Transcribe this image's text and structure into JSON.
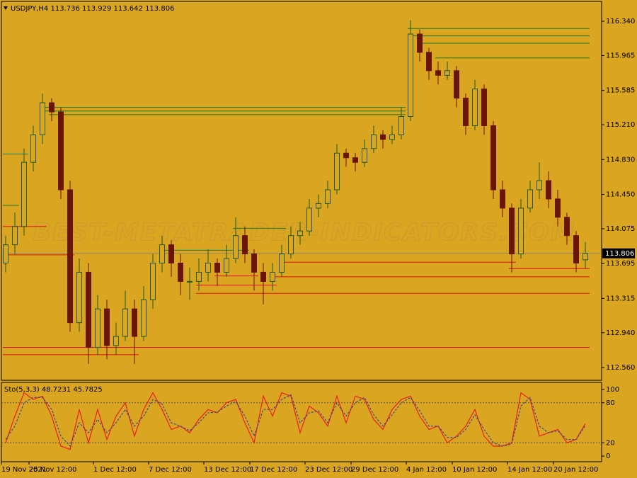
{
  "chart_data": [
    {
      "type": "candlestick",
      "title": "USDJPY,H4  113.736 113.929 113.642 113.806",
      "watermark": "BEST-METATRADER-INDICATORS.COM",
      "categories": [
        "19 Nov 2021",
        null,
        null,
        "25 Nov 12:00",
        null,
        null,
        null,
        null,
        null,
        null,
        "1 Dec 12:00",
        null,
        null,
        null,
        null,
        null,
        "7 Dec 12:00",
        null,
        null,
        null,
        null,
        null,
        "13 Dec 12:00",
        null,
        null,
        null,
        null,
        "17 Dec 12:00",
        null,
        null,
        null,
        null,
        null,
        "23 Dec 12:00",
        null,
        null,
        null,
        null,
        "29 Dec 12:00",
        null,
        null,
        null,
        null,
        null,
        "4 Jan 12:00",
        null,
        null,
        null,
        null,
        "10 Jan 12:00",
        null,
        null,
        null,
        null,
        null,
        "14 Jan 12:00",
        null,
        null,
        null,
        null,
        "20 Jan 12:00",
        null,
        null,
        null
      ],
      "open": [
        113.7,
        113.9,
        114.1,
        114.8,
        115.1,
        115.45,
        115.35,
        114.5,
        113.05,
        113.6,
        112.78,
        113.2,
        112.8,
        112.9,
        113.2,
        112.9,
        113.3,
        113.7,
        113.9,
        113.7,
        113.5,
        113.5,
        113.6,
        113.7,
        113.6,
        113.75,
        114.0,
        113.8,
        113.6,
        113.5,
        113.6,
        113.8,
        114.0,
        114.05,
        114.3,
        114.35,
        114.5,
        114.9,
        114.85,
        114.8,
        114.95,
        115.1,
        115.05,
        115.1,
        115.3,
        116.2,
        116.0,
        115.8,
        115.75,
        115.8,
        115.5,
        115.2,
        115.6,
        115.2,
        114.5,
        114.3,
        113.8,
        114.3,
        114.5,
        114.6,
        114.4,
        114.2,
        114.0,
        113.736
      ],
      "high": [
        114.0,
        114.25,
        114.95,
        115.2,
        115.55,
        115.5,
        115.4,
        114.6,
        113.75,
        113.7,
        113.35,
        113.3,
        113.05,
        113.4,
        113.3,
        113.45,
        113.8,
        114.0,
        113.95,
        113.8,
        113.65,
        113.75,
        113.85,
        113.75,
        113.9,
        114.2,
        114.1,
        113.85,
        113.7,
        113.7,
        113.9,
        114.1,
        114.15,
        114.4,
        114.45,
        114.6,
        115.0,
        114.95,
        114.9,
        115.05,
        115.2,
        115.15,
        115.2,
        115.4,
        116.35,
        116.25,
        116.05,
        115.9,
        115.9,
        115.85,
        115.55,
        115.7,
        115.65,
        115.25,
        114.6,
        114.35,
        114.4,
        114.6,
        114.8,
        114.7,
        114.5,
        114.25,
        114.05,
        113.929
      ],
      "low": [
        113.6,
        113.8,
        114.0,
        114.7,
        115.0,
        115.25,
        114.4,
        112.95,
        112.95,
        112.6,
        112.7,
        112.65,
        112.7,
        112.85,
        112.6,
        112.85,
        113.2,
        113.6,
        113.55,
        113.35,
        113.3,
        113.4,
        113.5,
        113.45,
        113.55,
        113.7,
        113.7,
        113.4,
        113.25,
        113.4,
        113.55,
        113.75,
        113.9,
        114.0,
        114.2,
        114.3,
        114.45,
        114.75,
        114.7,
        114.75,
        114.9,
        114.95,
        115.0,
        115.05,
        115.25,
        115.9,
        115.7,
        115.65,
        115.7,
        115.4,
        115.1,
        115.15,
        115.1,
        114.4,
        114.2,
        113.6,
        113.75,
        114.25,
        114.4,
        114.3,
        114.1,
        113.9,
        113.6,
        113.642
      ],
      "close": [
        113.9,
        114.1,
        114.8,
        115.1,
        115.45,
        115.35,
        114.5,
        113.05,
        113.6,
        112.78,
        113.2,
        112.8,
        112.9,
        113.2,
        112.9,
        113.3,
        113.7,
        113.9,
        113.7,
        113.5,
        113.5,
        113.6,
        113.7,
        113.6,
        113.75,
        114.0,
        113.8,
        113.6,
        113.5,
        113.6,
        113.8,
        114.0,
        114.05,
        114.3,
        114.35,
        114.5,
        114.9,
        114.85,
        114.8,
        114.95,
        115.1,
        115.05,
        115.1,
        115.3,
        116.2,
        116.0,
        115.8,
        115.75,
        115.8,
        115.5,
        115.2,
        115.6,
        115.2,
        114.5,
        114.3,
        113.8,
        114.3,
        114.5,
        114.6,
        114.4,
        114.2,
        114.0,
        113.7,
        113.806
      ],
      "bull_color": "#1f5a1f",
      "bear_color": "#6b1408",
      "ylim": [
        112.421,
        116.556
      ],
      "yticks": [
        {
          "value": 116.34,
          "label": "116.340"
        },
        {
          "value": 115.965,
          "label": "115.965"
        },
        {
          "value": 115.585,
          "label": "115.585"
        },
        {
          "value": 115.21,
          "label": "115.210"
        },
        {
          "value": 114.83,
          "label": "114.830"
        },
        {
          "value": 114.45,
          "label": "114.450"
        },
        {
          "value": 114.075,
          "label": "114.075"
        },
        {
          "value": 113.695,
          "label": "113.695"
        },
        {
          "value": 113.315,
          "label": "113.315"
        },
        {
          "value": 112.94,
          "label": "112.940"
        },
        {
          "value": 112.56,
          "label": "112.560"
        }
      ],
      "last_price": {
        "value": 113.806,
        "label": "113.806"
      },
      "levels": [
        {
          "value": 116.26,
          "color": "#1e7a1e",
          "from": 44,
          "to": 63
        },
        {
          "value": 116.18,
          "color": "#1e7a1e",
          "from": 44,
          "to": 63
        },
        {
          "value": 116.1,
          "color": "#1e7a1e",
          "from": 45,
          "to": 63
        },
        {
          "value": 115.94,
          "color": "#1e7a1e",
          "from": 47,
          "to": 63
        },
        {
          "value": 115.4,
          "color": "#1e7a1e",
          "from": 4,
          "to": 43
        },
        {
          "value": 115.36,
          "color": "#1e7a1e",
          "from": 4,
          "to": 43
        },
        {
          "value": 115.32,
          "color": "#1e7a1e",
          "from": 5,
          "to": 43
        },
        {
          "value": 114.89,
          "color": "#1e7a1e",
          "from": 0,
          "to": 2
        },
        {
          "value": 114.33,
          "color": "#1e7a1e",
          "from": 0,
          "to": 1
        },
        {
          "value": 114.08,
          "color": "#1e7a1e",
          "from": 25,
          "to": 30
        },
        {
          "value": 113.84,
          "color": "#1e7a1e",
          "from": 17,
          "to": 26
        },
        {
          "value": 114.1,
          "color": "#e01010",
          "from": 0,
          "to": 4
        },
        {
          "value": 113.79,
          "color": "#e01010",
          "from": 0,
          "to": 7
        },
        {
          "value": 113.71,
          "color": "#e01010",
          "from": 30,
          "to": 55
        },
        {
          "value": 113.64,
          "color": "#e01010",
          "from": 55,
          "to": 63
        },
        {
          "value": 113.56,
          "color": "#e01010",
          "from": 23,
          "to": 27
        },
        {
          "value": 113.55,
          "color": "#e01010",
          "from": 29,
          "to": 63
        },
        {
          "value": 113.46,
          "color": "#e01010",
          "from": 21,
          "to": 29
        },
        {
          "value": 113.37,
          "color": "#e01010",
          "from": 21,
          "to": 63
        },
        {
          "value": 112.78,
          "color": "#e01010",
          "from": 0,
          "to": 63
        },
        {
          "value": 112.7,
          "color": "#e01010",
          "from": 0,
          "to": 14
        }
      ]
    },
    {
      "type": "line",
      "title": "Sto(5,3,3) 48.7231 45.7825",
      "series": [
        {
          "color": "#e8201a",
          "dashed": false,
          "values": [
            20,
            60,
            95,
            85,
            90,
            60,
            15,
            10,
            70,
            20,
            70,
            25,
            60,
            80,
            30,
            70,
            95,
            70,
            40,
            45,
            35,
            55,
            70,
            65,
            80,
            85,
            50,
            20,
            90,
            60,
            95,
            90,
            35,
            75,
            65,
            45,
            90,
            50,
            90,
            85,
            55,
            40,
            70,
            85,
            90,
            60,
            40,
            45,
            20,
            30,
            45,
            70,
            30,
            15,
            15,
            20,
            95,
            85,
            30,
            35,
            40,
            20,
            25,
            48.7231
          ]
        },
        {
          "color": "#3c4c86",
          "dashed": true,
          "values": [
            25,
            45,
            80,
            88,
            88,
            70,
            30,
            15,
            50,
            35,
            55,
            35,
            50,
            70,
            45,
            60,
            85,
            78,
            50,
            45,
            38,
            50,
            65,
            66,
            75,
            82,
            60,
            30,
            70,
            70,
            85,
            92,
            50,
            65,
            68,
            50,
            80,
            60,
            80,
            88,
            62,
            45,
            62,
            80,
            88,
            68,
            45,
            45,
            28,
            28,
            40,
            62,
            40,
            20,
            15,
            18,
            75,
            88,
            45,
            35,
            38,
            25,
            25,
            45.7825
          ]
        }
      ],
      "ylim": [
        -8.4,
        109.5
      ],
      "yticks": [
        0,
        20,
        80,
        100
      ],
      "levels": [
        80,
        20
      ]
    }
  ]
}
